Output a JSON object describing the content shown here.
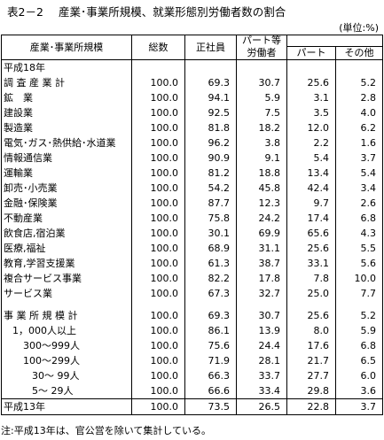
{
  "title": {
    "number": "表2－2",
    "text": "産業･事業所規模、就業形態別労働者数の割合"
  },
  "unit": "(単位:%)",
  "headers": {
    "category": "産業･事業所規模",
    "total": "総数",
    "regular": "正社員",
    "part_group_line1": "パート等",
    "part_group_line2": "労働者",
    "part": "パート",
    "other": "その他"
  },
  "rows": [
    {
      "label": "平成18年",
      "values": [
        "",
        "",
        "",
        "",
        ""
      ],
      "indent": 0
    },
    {
      "label": "調 査 産 業 計",
      "values": [
        "100.0",
        "69.3",
        "30.7",
        "25.6",
        "5.2"
      ],
      "indent": 0
    },
    {
      "label": "鉱　業",
      "values": [
        "100.0",
        "94.1",
        "5.9",
        "3.1",
        "2.8"
      ],
      "indent": 0
    },
    {
      "label": "建設業",
      "values": [
        "100.0",
        "92.5",
        "7.5",
        "3.5",
        "4.0"
      ],
      "indent": 0
    },
    {
      "label": "製造業",
      "values": [
        "100.0",
        "81.8",
        "18.2",
        "12.0",
        "6.2"
      ],
      "indent": 0
    },
    {
      "label": "電気･ガス･熱供給･水道業",
      "values": [
        "100.0",
        "96.2",
        "3.8",
        "2.2",
        "1.6"
      ],
      "indent": 0
    },
    {
      "label": "情報通信業",
      "values": [
        "100.0",
        "90.9",
        "9.1",
        "5.4",
        "3.7"
      ],
      "indent": 0
    },
    {
      "label": "運輸業",
      "values": [
        "100.0",
        "81.2",
        "18.8",
        "13.4",
        "5.4"
      ],
      "indent": 0
    },
    {
      "label": "卸売･小売業",
      "values": [
        "100.0",
        "54.2",
        "45.8",
        "42.4",
        "3.4"
      ],
      "indent": 0
    },
    {
      "label": "金融･保険業",
      "values": [
        "100.0",
        "87.7",
        "12.3",
        "9.7",
        "2.6"
      ],
      "indent": 0
    },
    {
      "label": "不動産業",
      "values": [
        "100.0",
        "75.8",
        "24.2",
        "17.4",
        "6.8"
      ],
      "indent": 0
    },
    {
      "label": "飲食店,宿泊業",
      "values": [
        "100.0",
        "30.1",
        "69.9",
        "65.6",
        "4.3"
      ],
      "indent": 0
    },
    {
      "label": "医療,福祉",
      "values": [
        "100.0",
        "68.9",
        "31.1",
        "25.6",
        "5.5"
      ],
      "indent": 0
    },
    {
      "label": "教育,学習支援業",
      "values": [
        "100.0",
        "61.3",
        "38.7",
        "33.1",
        "5.6"
      ],
      "indent": 0
    },
    {
      "label": "複合サービス事業",
      "values": [
        "100.0",
        "82.2",
        "17.8",
        "7.8",
        "10.0"
      ],
      "indent": 0
    },
    {
      "label": "サービス業",
      "values": [
        "100.0",
        "67.3",
        "32.7",
        "25.0",
        "7.7"
      ],
      "indent": 0
    },
    {
      "label": "",
      "values": [
        "",
        "",
        "",
        "",
        ""
      ],
      "indent": 0,
      "gap": true
    },
    {
      "label": "事 業 所 規 模 計",
      "values": [
        "100.0",
        "69.3",
        "30.7",
        "25.6",
        "5.2"
      ],
      "indent": 0
    },
    {
      "label": "1，000人以上",
      "values": [
        "100.0",
        "86.1",
        "13.9",
        "8.0",
        "5.9"
      ],
      "indent": 1
    },
    {
      "label": "300～999人",
      "values": [
        "100.0",
        "75.6",
        "24.4",
        "17.6",
        "6.8"
      ],
      "indent": 2
    },
    {
      "label": "100～299人",
      "values": [
        "100.0",
        "71.9",
        "28.1",
        "21.7",
        "6.5"
      ],
      "indent": 2
    },
    {
      "label": "30～ 99人",
      "values": [
        "100.0",
        "66.3",
        "33.7",
        "27.7",
        "6.0"
      ],
      "indent": 3
    },
    {
      "label": "5～ 29人",
      "values": [
        "100.0",
        "66.6",
        "33.4",
        "29.8",
        "3.6"
      ],
      "indent": 3
    },
    {
      "label": "平成13年",
      "values": [
        "100.0",
        "73.5",
        "26.5",
        "22.8",
        "3.7"
      ],
      "indent": 0,
      "last": true
    }
  ],
  "note": "注:平成13年は、官公営を除いて集計している。"
}
